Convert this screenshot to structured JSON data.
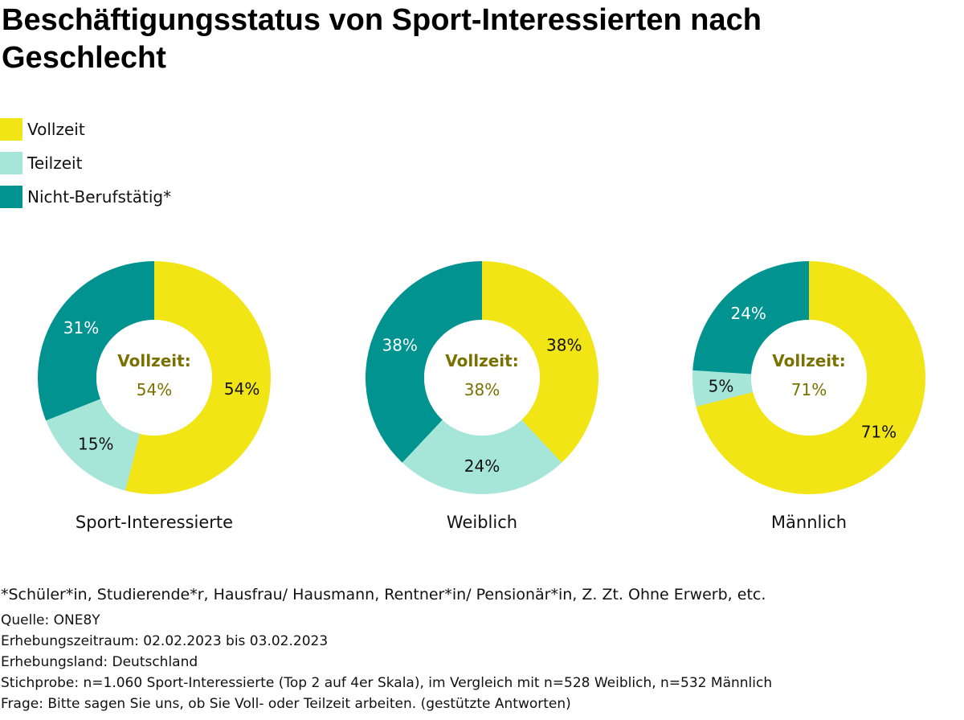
{
  "title": "Beschäftigungsstatus von Sport-Interessierten nach Geschlecht",
  "colors": {
    "vollzeit": "#f2e516",
    "teilzeit": "#a6e6d8",
    "nicht_berufstaetig": "#009390",
    "center_label": "#7a7200"
  },
  "legend": [
    {
      "label": "Vollzeit",
      "color": "#f2e516"
    },
    {
      "label": "Teilzeit",
      "color": "#a6e6d8"
    },
    {
      "label": "Nicht-Berufstätig*",
      "color": "#009390"
    }
  ],
  "chart_data": [
    {
      "type": "pie",
      "title": "Sport-Interessierte",
      "center_title": "Vollzeit:",
      "center_value": "54%",
      "slices": [
        {
          "label": "Vollzeit",
          "value": 54,
          "display": "54%"
        },
        {
          "label": "Teilzeit",
          "value": 15,
          "display": "15%"
        },
        {
          "label": "Nicht-Berufstätig*",
          "value": 31,
          "display": "31%"
        }
      ]
    },
    {
      "type": "pie",
      "title": "Weiblich",
      "center_title": "Vollzeit:",
      "center_value": "38%",
      "slices": [
        {
          "label": "Vollzeit",
          "value": 38,
          "display": "38%"
        },
        {
          "label": "Teilzeit",
          "value": 24,
          "display": "24%"
        },
        {
          "label": "Nicht-Berufstätig*",
          "value": 38,
          "display": "38%"
        }
      ]
    },
    {
      "type": "pie",
      "title": "Männlich",
      "center_title": "Vollzeit:",
      "center_value": "71%",
      "slices": [
        {
          "label": "Vollzeit",
          "value": 71,
          "display": "71%"
        },
        {
          "label": "Teilzeit",
          "value": 5,
          "display": "5%"
        },
        {
          "label": "Nicht-Berufstätig*",
          "value": 24,
          "display": "24%"
        }
      ]
    }
  ],
  "footnote": "*Schüler*in, Studierende*r, Hausfrau/ Hausmann, Rentner*in/ Pensionär*in, Z. Zt. Ohne Erwerb, etc.",
  "source_lines": [
    "Quelle: ONE8Y",
    "Erhebungszeitraum: 02.02.2023 bis 03.02.2023",
    "Erhebungsland: Deutschland",
    "Stichprobe: n=1.060 Sport-Interessierte (Top 2 auf 4er Skala), im Vergleich mit n=528 Weiblich, n=532 Männlich",
    "Frage: Bitte sagen Sie uns, ob Sie Voll- oder Teilzeit arbeiten. (gestützte Antworten)"
  ]
}
